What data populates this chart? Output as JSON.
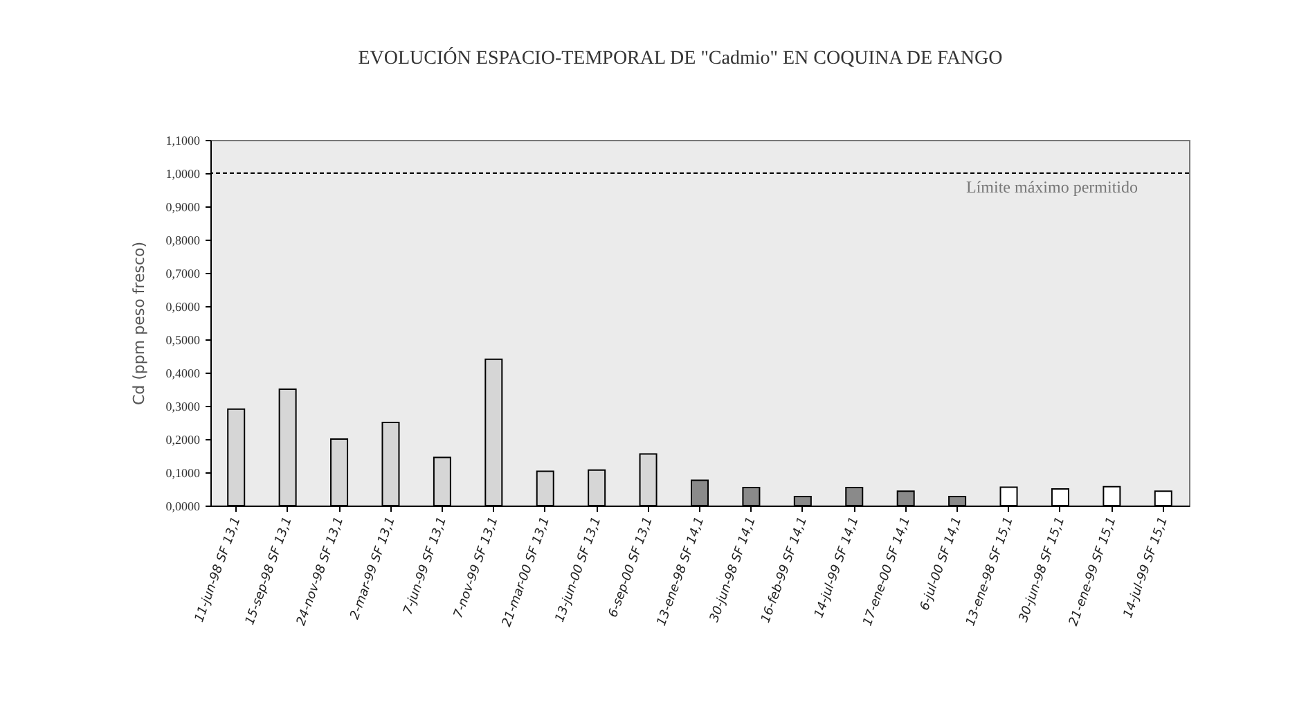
{
  "chart_data": {
    "type": "bar",
    "title": "EVOLUCIÓN ESPACIO-TEMPORAL DE \"Cadmio\" EN COQUINA DE FANGO",
    "ylabel": "Cd (ppm peso fresco)",
    "categories": [
      "11-jun-98 SF 13,1",
      "15-sep-98 SF 13,1",
      "24-nov-98 SF 13,1",
      "2-mar-99 SF 13,1",
      "7-jun-99 SF 13,1",
      "7-nov-99 SF 13,1",
      "21-mar-00 SF 13,1",
      "13-jun-00 SF 13,1",
      "6-sep-00 SF 13,1",
      "13-ene-98 SF 14,1",
      "30-jun-98 SF 14,1",
      "16-feb-99 SF 14,1",
      "14-jul-99 SF 14,1",
      "17-ene-00 SF 14,1",
      "6-jul-00 SF 14,1",
      "13-ene-98 SF 15,1",
      "30-jun-98 SF 15,1",
      "21-ene-99 SF 15,1",
      "14-jul-99 SF 15,1"
    ],
    "values": [
      0.29,
      0.35,
      0.2,
      0.25,
      0.145,
      0.44,
      0.103,
      0.107,
      0.155,
      0.076,
      0.054,
      0.027,
      0.054,
      0.043,
      0.027,
      0.055,
      0.05,
      0.057,
      0.043
    ],
    "colors": [
      "#d6d6d6",
      "#d6d6d6",
      "#d6d6d6",
      "#d6d6d6",
      "#d6d6d6",
      "#d6d6d6",
      "#d6d6d6",
      "#d6d6d6",
      "#d6d6d6",
      "#8a8a8a",
      "#8a8a8a",
      "#8a8a8a",
      "#8a8a8a",
      "#8a8a8a",
      "#8a8a8a",
      "#ffffff",
      "#ffffff",
      "#ffffff",
      "#ffffff"
    ],
    "ylim": [
      0,
      1.1
    ],
    "yticks": [
      {
        "value": 0,
        "label": "0,0000"
      },
      {
        "value": 0.1,
        "label": "0,1000"
      },
      {
        "value": 0.2,
        "label": "0,2000"
      },
      {
        "value": 0.3,
        "label": "0,3000"
      },
      {
        "value": 0.4,
        "label": "0,4000"
      },
      {
        "value": 0.5,
        "label": "0,5000"
      },
      {
        "value": 0.6,
        "label": "0,6000"
      },
      {
        "value": 0.7,
        "label": "0,7000"
      },
      {
        "value": 0.8,
        "label": "0,8000"
      },
      {
        "value": 0.9,
        "label": "0,9000"
      },
      {
        "value": 1.0,
        "label": "1,0000"
      },
      {
        "value": 1.1,
        "label": "1,1000"
      }
    ],
    "ref_lines": [
      {
        "axis": "y",
        "value": 1.0,
        "label": "Límite máximo permitido",
        "line_style": "dashed",
        "color": "#000000"
      }
    ],
    "grid": false
  }
}
